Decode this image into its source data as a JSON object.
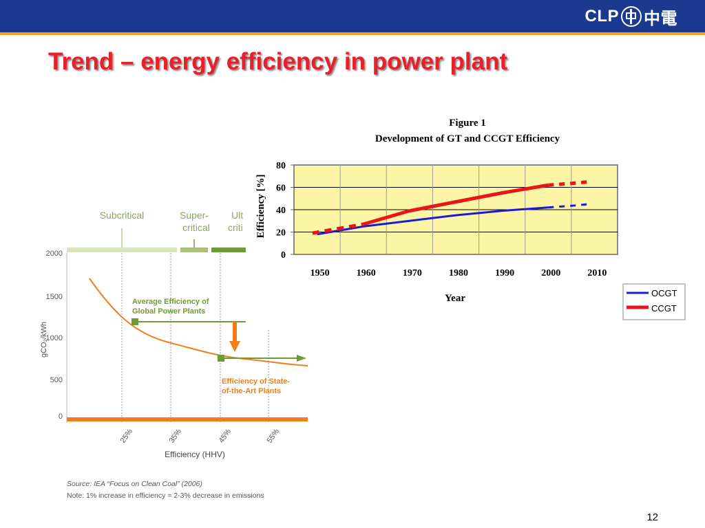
{
  "slide": {
    "title": "Trend – energy efficiency in power plant",
    "page_number": "12",
    "logo_text": "CLP",
    "logo_cjk": "中電"
  },
  "colors": {
    "header_bg": "#1a3a8f",
    "header_line": "#f5a21b",
    "title": "#e8202a",
    "ocgt": "#1b1bd6",
    "ccgt": "#e8151b",
    "plot_bg": "#fbf5a5",
    "left_curve": "#f07e1a",
    "left_green": "#6e9b36"
  },
  "chart_data": [
    {
      "type": "line",
      "title": "Figure 1",
      "subtitle": "Development of GT and CCGT Efficiency",
      "xlabel": "Year",
      "ylabel": "Efficiency [%]",
      "xlim": [
        1945,
        2015
      ],
      "ylim": [
        0,
        80
      ],
      "x_ticks": [
        1950,
        1960,
        1970,
        1980,
        1990,
        2000,
        2010
      ],
      "y_ticks": [
        0,
        20,
        40,
        60,
        80
      ],
      "legend_position": "bottom-right",
      "series": [
        {
          "name": "OCGT",
          "color": "#1b1bd6",
          "solid": {
            "x": [
              1950,
              1960,
              1970,
              1980,
              1990,
              2000
            ],
            "y": [
              18,
              25,
              30,
              35,
              39,
              42
            ]
          },
          "dashed": {
            "x": [
              2000,
              2005,
              2009
            ],
            "y": [
              42,
              43.5,
              45
            ]
          }
        },
        {
          "name": "CCGT",
          "color": "#e8151b",
          "dashed_start": {
            "x": [
              1949,
              1960
            ],
            "y": [
              19,
              27
            ]
          },
          "solid": {
            "x": [
              1960,
              1970,
              1980,
              1990,
              2000
            ],
            "y": [
              27,
              39,
              47,
              55,
              62
            ]
          },
          "dashed": {
            "x": [
              2000,
              2005,
              2009
            ],
            "y": [
              62,
              63.5,
              65
            ]
          }
        }
      ]
    },
    {
      "type": "line",
      "xlabel": "Efficiency (HHV)",
      "ylabel": "gCO₂/kWh",
      "ylim": [
        0,
        2000
      ],
      "y_ticks": [
        "2000",
        "1500",
        "1000",
        "500",
        "0"
      ],
      "x_ticks": [
        "25%",
        "35%",
        "45%",
        "55%"
      ],
      "categories": [
        "Subcritical",
        "Super-critical",
        "Ult crit"
      ],
      "category_labels": {
        "sub": "Subcritical",
        "super1": "Super-",
        "super2": "critical",
        "ult1": "Ult",
        "ult2": "criti"
      },
      "annotations": {
        "avg1": "Average Efficiency of",
        "avg2": "Global Power Plants",
        "sota1": "Efficiency of State-",
        "sota2": "of-the-Art Plants"
      },
      "series": [
        {
          "name": "",
          "x": [
            0.2,
            0.25,
            0.3,
            0.35,
            0.4,
            0.45,
            0.5,
            0.55,
            0.6
          ],
          "y": [
            1650,
            1300,
            1100,
            960,
            850,
            760,
            690,
            640,
            600
          ]
        }
      ],
      "source": "Source: IEA “Focus on Clean Coal” (2006)",
      "note": "Note: 1% increase in efficiency = 2-3% decrease in emissions"
    }
  ]
}
